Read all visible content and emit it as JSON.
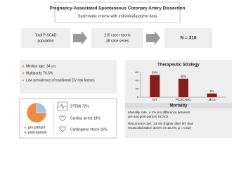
{
  "header": {
    "title": "Pregnancy-Associated Spontaneous Coronary Artery Dissection",
    "subtitle": "Systematic review with individual-patient data"
  },
  "flow": {
    "population": [
      "Total P-SCAD",
      "population"
    ],
    "sources": [
      "215 case reports",
      "38 case series"
    ],
    "total": "N = 316"
  },
  "characteristics": [
    "Median age: 34 y.o.",
    "Multiparity 76.5%",
    "Low prevalence of traditional CV risk factors"
  ],
  "presentation": [
    "STEMI 72%",
    "Cardiac arrest 18%",
    "Cardiogenic shock 16%"
  ],
  "chart_data": [
    {
      "type": "pie",
      "categories": [
        "pre-partum",
        "post-partum"
      ],
      "values": [
        25,
        75
      ],
      "colors": [
        "#9ec5e8",
        "#f08a3c"
      ]
    },
    {
      "type": "bar",
      "title": "Therapeutic Strategy",
      "categories": [
        "MT",
        "PCI/CABG",
        "MCS"
      ],
      "values": [
        54,
        45,
        9
      ],
      "value_labels": [
        "54%",
        "45%",
        "9%"
      ],
      "ylim": [
        0,
        60
      ],
      "yticks": [
        0,
        20,
        40,
        60
      ],
      "color": "#8b1a1a"
    }
  ],
  "mortality": {
    "title": "Mortality",
    "items": [
      {
        "label": "Mortality rate:",
        "lines": [
          "4.1% (no difference between",
          "pre and post-partum SCAD)"
        ]
      },
      {
        "label": "Recurrence rate:",
        "lines": [
          "23.4% (higher after MT than",
          "revascularization 30.8% vs 18.3%, p = 0.02)"
        ]
      }
    ]
  }
}
